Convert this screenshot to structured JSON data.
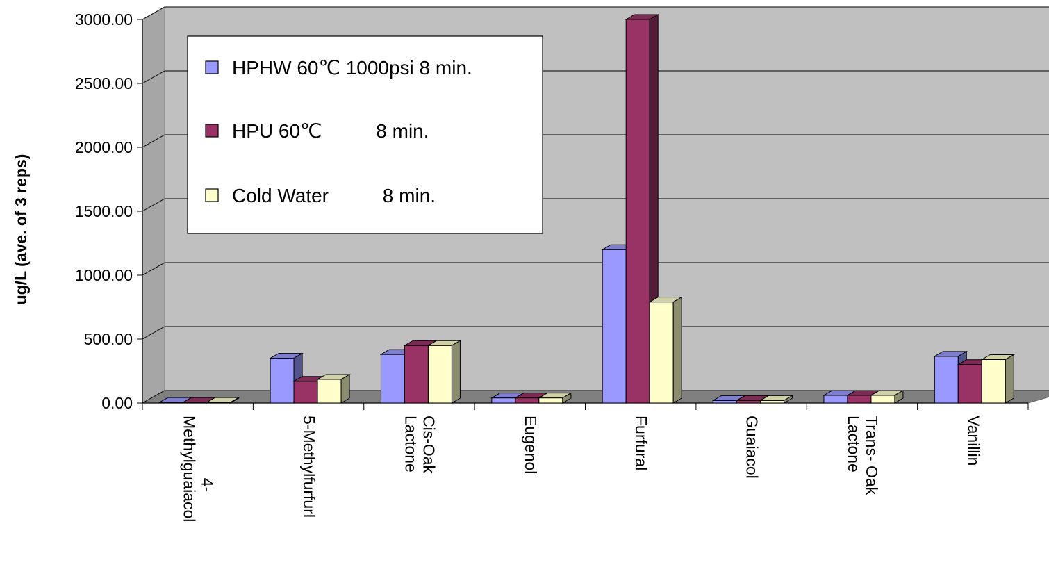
{
  "chart_data": {
    "type": "bar",
    "categories": [
      [
        "4-",
        "Methylguaiacol"
      ],
      [
        "5-Methylfurfurl"
      ],
      [
        "Cis-Oak",
        "Lactone"
      ],
      [
        "Eugenol"
      ],
      [
        "Furfural"
      ],
      [
        "Guaiacol"
      ],
      [
        "Trans- Oak",
        "Lactone"
      ],
      [
        "Vanillin"
      ]
    ],
    "series": [
      {
        "name": "HPHW 60℃ 1000psi 8 min.",
        "color": "#9999FF",
        "values": [
          5,
          350,
          380,
          40,
          1200,
          20,
          60,
          365
        ]
      },
      {
        "name": "HPU 60℃          8 min.",
        "color": "#993366",
        "values": [
          5,
          170,
          450,
          40,
          3000,
          20,
          60,
          300
        ]
      },
      {
        "name": "Cold Water          8 min.",
        "color": "#FFFFCC",
        "values": [
          5,
          185,
          450,
          40,
          790,
          20,
          60,
          340
        ]
      }
    ],
    "ylabel": "ug/L (ave. of 3 reps)",
    "xlabel": "",
    "title": "",
    "ylim": [
      0,
      3000
    ],
    "yticks": [
      "0.00",
      "500.00",
      "1000.00",
      "1500.00",
      "2000.00",
      "2500.00",
      "3000.00"
    ],
    "grid": true,
    "legend_position": "top-left-inside",
    "wall_color": "#C0C0C0",
    "floor_color": "#808080"
  }
}
